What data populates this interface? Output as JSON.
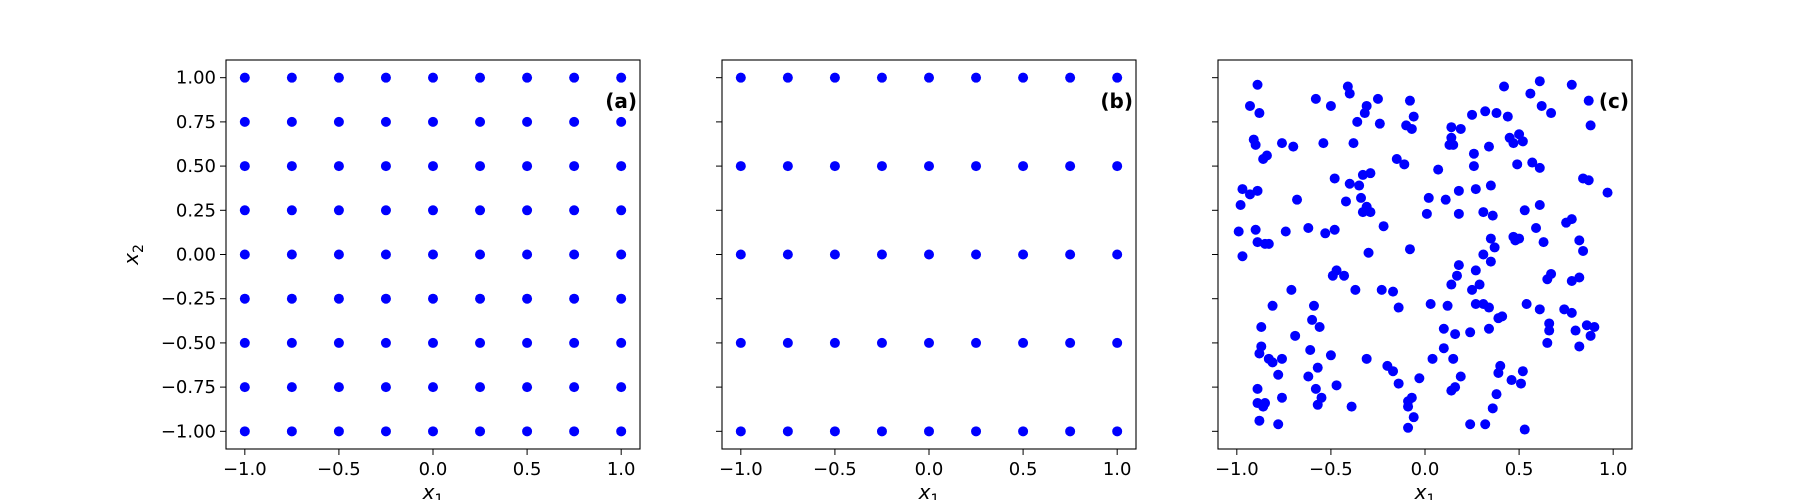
{
  "chart_data": [
    {
      "type": "scatter",
      "panel_label": "(a)",
      "xlabel": "x",
      "xlabel_sub": "1",
      "ylabel": "x",
      "ylabel_sub": "2",
      "xlim": [
        -1.1,
        1.1
      ],
      "ylim": [
        -1.1,
        1.1
      ],
      "xticks": [
        -1.0,
        -0.5,
        0.0,
        0.5,
        1.0
      ],
      "xtick_labels": [
        "−1.0",
        "−0.5",
        "0.0",
        "0.5",
        "1.0"
      ],
      "yticks": [
        -1.0,
        -0.75,
        -0.5,
        -0.25,
        0.0,
        0.25,
        0.5,
        0.75,
        1.0
      ],
      "ytick_labels": [
        "−1.00",
        "−0.75",
        "−0.50",
        "−0.25",
        "0.00",
        "0.25",
        "0.50",
        "0.75",
        "1.00"
      ],
      "color": "#0000ff",
      "grid_x": [
        -1.0,
        -0.75,
        -0.5,
        -0.25,
        0.0,
        0.25,
        0.5,
        0.75,
        1.0
      ],
      "grid_y": [
        -1.0,
        -0.75,
        -0.5,
        -0.25,
        0.0,
        0.25,
        0.5,
        0.75,
        1.0
      ]
    },
    {
      "type": "scatter",
      "panel_label": "(b)",
      "xlabel": "x",
      "xlabel_sub": "1",
      "ylabel": "",
      "ylabel_sub": "",
      "xlim": [
        -1.1,
        1.1
      ],
      "ylim": [
        -1.1,
        1.1
      ],
      "xticks": [
        -1.0,
        -0.5,
        0.0,
        0.5,
        1.0
      ],
      "xtick_labels": [
        "−1.0",
        "−0.5",
        "0.0",
        "0.5",
        "1.0"
      ],
      "yticks": [
        -1.0,
        -0.75,
        -0.5,
        -0.25,
        0.0,
        0.25,
        0.5,
        0.75,
        1.0
      ],
      "ytick_labels": [],
      "color": "#0000ff",
      "grid_x": [
        -1.0,
        -0.75,
        -0.5,
        -0.25,
        0.0,
        0.25,
        0.5,
        0.75,
        1.0
      ],
      "grid_y": [
        -1.0,
        -0.5,
        0.0,
        0.5,
        1.0
      ]
    },
    {
      "type": "scatter",
      "panel_label": "(c)",
      "xlabel": "x",
      "xlabel_sub": "1",
      "ylabel": "",
      "ylabel_sub": "",
      "xlim": [
        -1.1,
        1.1
      ],
      "ylim": [
        -1.1,
        1.1
      ],
      "xticks": [
        -1.0,
        -0.5,
        0.0,
        0.5,
        1.0
      ],
      "xtick_labels": [
        "−1.0",
        "−0.5",
        "0.0",
        "0.5",
        "1.0"
      ],
      "yticks": [
        -1.0,
        -0.75,
        -0.5,
        -0.25,
        0.0,
        0.25,
        0.5,
        0.75,
        1.0
      ],
      "ytick_labels": [],
      "color": "#0000ff",
      "points": [
        [
          -0.89,
          0.96
        ],
        [
          -0.93,
          0.84
        ],
        [
          -0.88,
          0.8
        ],
        [
          -0.91,
          0.65
        ],
        [
          -0.9,
          0.62
        ],
        [
          -0.86,
          0.54
        ],
        [
          -0.84,
          0.56
        ],
        [
          -0.76,
          0.63
        ],
        [
          -0.7,
          0.61
        ],
        [
          -0.97,
          0.37
        ],
        [
          -0.93,
          0.34
        ],
        [
          -0.89,
          0.36
        ],
        [
          -0.98,
          0.28
        ],
        [
          -0.99,
          0.13
        ],
        [
          -0.9,
          0.14
        ],
        [
          -0.97,
          -0.01
        ],
        [
          -0.89,
          0.07
        ],
        [
          -0.85,
          0.06
        ],
        [
          -0.83,
          0.06
        ],
        [
          -0.74,
          0.13
        ],
        [
          -0.68,
          0.31
        ],
        [
          -0.62,
          0.15
        ],
        [
          -0.58,
          0.88
        ],
        [
          -0.54,
          0.63
        ],
        [
          -0.5,
          0.84
        ],
        [
          -0.48,
          0.43
        ],
        [
          -0.41,
          0.95
        ],
        [
          -0.4,
          0.91
        ],
        [
          -0.38,
          0.63
        ],
        [
          -0.36,
          0.75
        ],
        [
          -0.32,
          0.8
        ],
        [
          -0.31,
          0.84
        ],
        [
          -0.25,
          0.88
        ],
        [
          -0.24,
          0.74
        ],
        [
          -0.29,
          0.46
        ],
        [
          -0.33,
          0.45
        ],
        [
          -0.35,
          0.39
        ],
        [
          -0.34,
          0.32
        ],
        [
          -0.31,
          0.27
        ],
        [
          -0.33,
          0.24
        ],
        [
          -0.29,
          0.24
        ],
        [
          -0.4,
          0.4
        ],
        [
          -0.48,
          0.14
        ],
        [
          -0.53,
          0.12
        ],
        [
          -0.42,
          0.3
        ],
        [
          -0.22,
          0.16
        ],
        [
          -0.15,
          0.54
        ],
        [
          -0.11,
          0.51
        ],
        [
          -0.1,
          0.73
        ],
        [
          -0.07,
          0.71
        ],
        [
          -0.08,
          0.87
        ],
        [
          -0.06,
          0.78
        ],
        [
          -0.08,
          0.03
        ],
        [
          -0.3,
          0.01
        ],
        [
          -0.47,
          -0.09
        ],
        [
          -0.49,
          -0.12
        ],
        [
          -0.43,
          -0.12
        ],
        [
          -0.37,
          -0.2
        ],
        [
          -0.23,
          -0.2
        ],
        [
          -0.14,
          -0.3
        ],
        [
          -0.17,
          -0.21
        ],
        [
          -0.71,
          -0.2
        ],
        [
          -0.81,
          -0.29
        ],
        [
          -0.59,
          -0.29
        ],
        [
          -0.6,
          -0.37
        ],
        [
          -0.56,
          -0.41
        ],
        [
          -0.69,
          -0.46
        ],
        [
          -0.87,
          -0.41
        ],
        [
          -0.87,
          -0.52
        ],
        [
          -0.88,
          -0.56
        ],
        [
          -0.83,
          -0.59
        ],
        [
          -0.81,
          -0.61
        ],
        [
          -0.76,
          -0.59
        ],
        [
          -0.78,
          -0.68
        ],
        [
          -0.89,
          -0.76
        ],
        [
          -0.86,
          -0.86
        ],
        [
          -0.89,
          -0.84
        ],
        [
          -0.85,
          -0.84
        ],
        [
          -0.76,
          -0.81
        ],
        [
          -0.88,
          -0.94
        ],
        [
          -0.78,
          -0.96
        ],
        [
          -0.62,
          -0.69
        ],
        [
          -0.61,
          -0.54
        ],
        [
          -0.5,
          -0.57
        ],
        [
          -0.57,
          -0.64
        ],
        [
          -0.47,
          -0.74
        ],
        [
          -0.58,
          -0.76
        ],
        [
          -0.55,
          -0.81
        ],
        [
          -0.57,
          -0.85
        ],
        [
          -0.39,
          -0.86
        ],
        [
          -0.31,
          -0.59
        ],
        [
          -0.2,
          -0.63
        ],
        [
          -0.17,
          -0.66
        ],
        [
          -0.14,
          -0.73
        ],
        [
          -0.09,
          -0.83
        ],
        [
          -0.07,
          -0.81
        ],
        [
          -0.09,
          -0.86
        ],
        [
          -0.06,
          -0.92
        ],
        [
          -0.09,
          -0.98
        ],
        [
          -0.03,
          -0.7
        ],
        [
          0.04,
          -0.59
        ],
        [
          0.12,
          -0.29
        ],
        [
          0.1,
          -0.42
        ],
        [
          0.16,
          -0.45
        ],
        [
          0.1,
          -0.53
        ],
        [
          0.15,
          -0.59
        ],
        [
          0.19,
          -0.69
        ],
        [
          0.16,
          -0.75
        ],
        [
          0.14,
          -0.77
        ],
        [
          0.24,
          -0.96
        ],
        [
          0.32,
          -0.96
        ],
        [
          0.36,
          -0.87
        ],
        [
          0.38,
          -0.79
        ],
        [
          0.39,
          -0.67
        ],
        [
          0.4,
          -0.63
        ],
        [
          0.46,
          -0.71
        ],
        [
          0.52,
          -0.66
        ],
        [
          0.51,
          -0.73
        ],
        [
          0.53,
          -0.99
        ],
        [
          0.24,
          -0.44
        ],
        [
          0.27,
          -0.28
        ],
        [
          0.31,
          -0.28
        ],
        [
          0.34,
          -0.3
        ],
        [
          0.39,
          -0.36
        ],
        [
          0.41,
          -0.35
        ],
        [
          0.34,
          -0.42
        ],
        [
          0.25,
          -0.2
        ],
        [
          0.29,
          -0.17
        ],
        [
          0.35,
          -0.04
        ],
        [
          0.37,
          0.04
        ],
        [
          0.35,
          0.09
        ],
        [
          0.31,
          0.0
        ],
        [
          0.27,
          -0.09
        ],
        [
          0.18,
          -0.06
        ],
        [
          0.17,
          -0.12
        ],
        [
          0.14,
          -0.17
        ],
        [
          0.03,
          -0.28
        ],
        [
          0.54,
          -0.28
        ],
        [
          0.61,
          -0.31
        ],
        [
          0.66,
          -0.39
        ],
        [
          0.66,
          -0.43
        ],
        [
          0.65,
          -0.5
        ],
        [
          0.65,
          -0.14
        ],
        [
          0.67,
          -0.11
        ],
        [
          0.74,
          -0.31
        ],
        [
          0.78,
          -0.33
        ],
        [
          0.8,
          -0.43
        ],
        [
          0.82,
          -0.52
        ],
        [
          0.88,
          -0.46
        ],
        [
          0.86,
          -0.4
        ],
        [
          0.9,
          -0.41
        ],
        [
          0.78,
          -0.15
        ],
        [
          0.82,
          -0.13
        ],
        [
          0.84,
          0.02
        ],
        [
          0.82,
          0.08
        ],
        [
          0.75,
          0.18
        ],
        [
          0.78,
          0.2
        ],
        [
          0.84,
          0.43
        ],
        [
          0.87,
          0.42
        ],
        [
          0.97,
          0.35
        ],
        [
          0.88,
          0.73
        ],
        [
          0.78,
          0.96
        ],
        [
          0.87,
          0.87
        ],
        [
          0.67,
          0.8
        ],
        [
          0.62,
          0.84
        ],
        [
          0.61,
          0.98
        ],
        [
          0.56,
          0.91
        ],
        [
          0.42,
          0.95
        ],
        [
          0.38,
          0.8
        ],
        [
          0.32,
          0.81
        ],
        [
          0.44,
          0.78
        ],
        [
          0.45,
          0.66
        ],
        [
          0.5,
          0.68
        ],
        [
          0.52,
          0.64
        ],
        [
          0.47,
          0.63
        ],
        [
          0.49,
          0.51
        ],
        [
          0.57,
          0.52
        ],
        [
          0.61,
          0.49
        ],
        [
          0.34,
          0.61
        ],
        [
          0.25,
          0.79
        ],
        [
          0.19,
          0.71
        ],
        [
          0.14,
          0.72
        ],
        [
          0.14,
          0.66
        ],
        [
          0.13,
          0.62
        ],
        [
          0.15,
          0.62
        ],
        [
          0.26,
          0.57
        ],
        [
          0.26,
          0.5
        ],
        [
          0.35,
          0.39
        ],
        [
          0.27,
          0.37
        ],
        [
          0.18,
          0.36
        ],
        [
          0.18,
          0.23
        ],
        [
          0.11,
          0.31
        ],
        [
          0.07,
          0.48
        ],
        [
          0.02,
          0.32
        ],
        [
          0.01,
          0.23
        ],
        [
          0.31,
          0.24
        ],
        [
          0.36,
          0.22
        ],
        [
          0.47,
          0.1
        ],
        [
          0.48,
          0.08
        ],
        [
          0.5,
          0.09
        ],
        [
          0.53,
          0.25
        ],
        [
          0.59,
          0.15
        ],
        [
          0.61,
          0.28
        ],
        [
          0.63,
          0.07
        ]
      ]
    }
  ]
}
